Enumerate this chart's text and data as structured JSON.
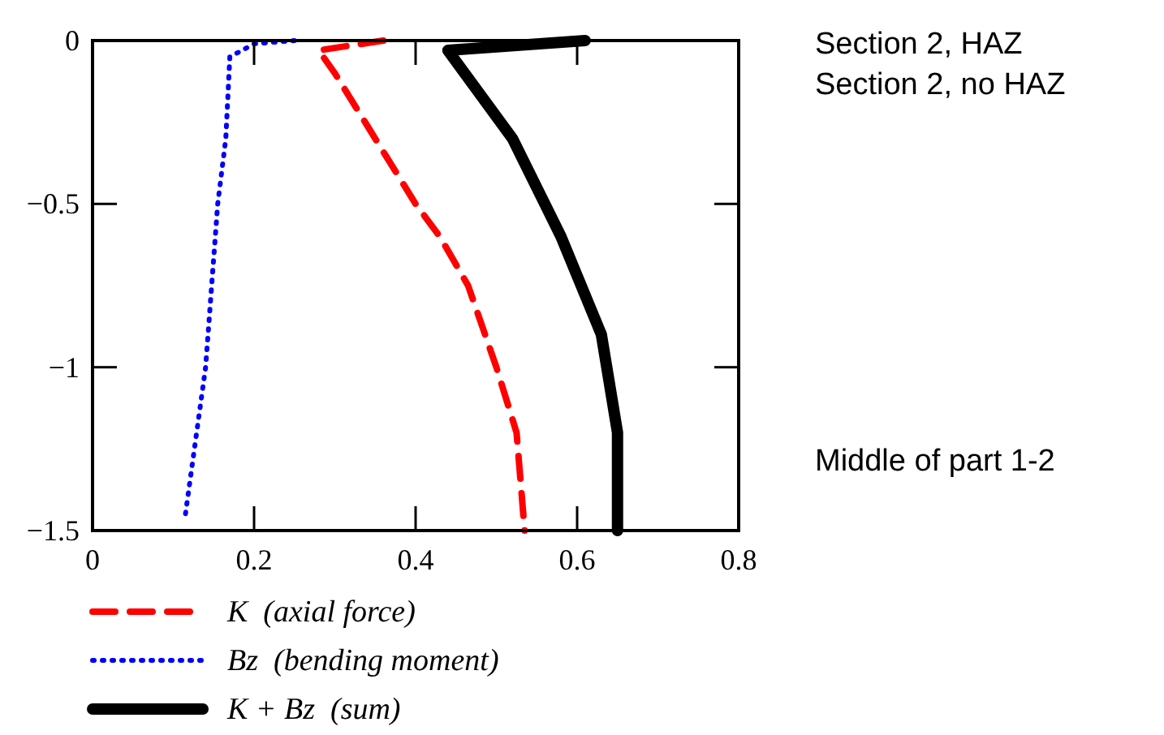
{
  "chart_data": {
    "type": "line",
    "xlim": [
      0,
      0.8
    ],
    "ylim": [
      -1.5,
      0
    ],
    "xticks": [
      0,
      0.2,
      0.4,
      0.6,
      0.8
    ],
    "yticks": [
      0,
      -0.5,
      -1,
      -1.5
    ],
    "grid": false,
    "legend": "bottom",
    "marker": "none",
    "series": [
      {
        "name": "K  (axial force)",
        "color": "#ff0000",
        "line_style": "dashed",
        "x": [
          0.36,
          0.28,
          0.3,
          0.35,
          0.4,
          0.43,
          0.465,
          0.5,
          0.525,
          0.535
        ],
        "values": [
          0,
          -0.03,
          -0.1,
          -0.3,
          -0.5,
          -0.6,
          -0.75,
          -1.0,
          -1.2,
          -1.5
        ]
      },
      {
        "name": "Bz  (bending moment)",
        "color": "#0000ff",
        "line_style": "dotted",
        "x": [
          0.25,
          0.2,
          0.17,
          0.165,
          0.155,
          0.14,
          0.115
        ],
        "values": [
          0,
          -0.01,
          -0.05,
          -0.3,
          -0.5,
          -1.0,
          -1.45
        ]
      },
      {
        "name": "K + Bz  (sum)",
        "color": "#000000",
        "line_style": "solid",
        "x": [
          0.61,
          0.44,
          0.52,
          0.58,
          0.63,
          0.65,
          0.65
        ],
        "values": [
          0,
          -0.03,
          -0.3,
          -0.6,
          -0.9,
          -1.2,
          -1.5
        ]
      }
    ],
    "annotations": [
      "Section 2, HAZ",
      "Section 2, no HAZ",
      "Middle of part 1-2"
    ]
  }
}
